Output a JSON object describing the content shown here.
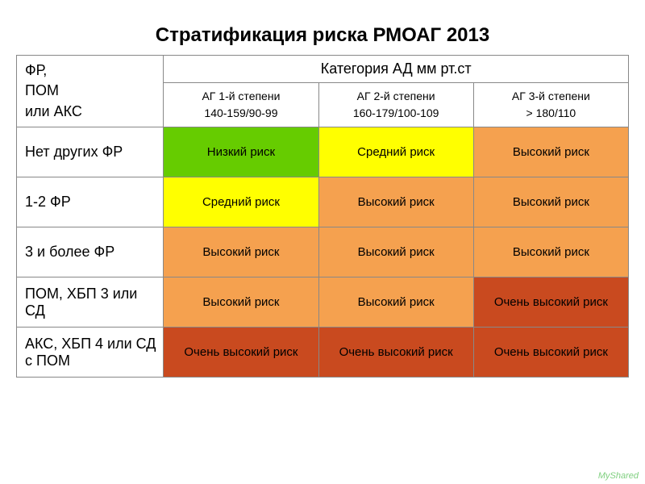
{
  "title": "Стратификация риска  РМОАГ 2013",
  "header": {
    "left": "ФР,\nПОМ\nили АКС",
    "category": "Категория АД мм рт.ст",
    "sub": [
      "АГ 1-й степени\n140-159/90-99",
      "АГ 2-й степени\n160-179/100-109",
      "АГ 3-й степени\n> 180/110"
    ]
  },
  "rowLabels": [
    "Нет других ФР",
    "1-2 ФР",
    "3 и более ФР",
    "ПОМ, ХБП 3 или СД",
    "АКС, ХБП 4 или СД с ПОМ"
  ],
  "riskText": {
    "low": "Низкий риск",
    "med": "Средний риск",
    "high": "Высокий риск",
    "vhigh": "Очень высокий риск"
  },
  "colors": {
    "low": "#66cc00",
    "med": "#ffff00",
    "high": "#f5a14f",
    "vhigh": "#c94a1f",
    "white": "#ffffff"
  },
  "grid": [
    [
      "low",
      "med",
      "high"
    ],
    [
      "med",
      "high",
      "high"
    ],
    [
      "high",
      "high",
      "high"
    ],
    [
      "high",
      "high",
      "vhigh"
    ],
    [
      "vhigh",
      "vhigh",
      "vhigh"
    ]
  ],
  "watermark": "MyShared"
}
